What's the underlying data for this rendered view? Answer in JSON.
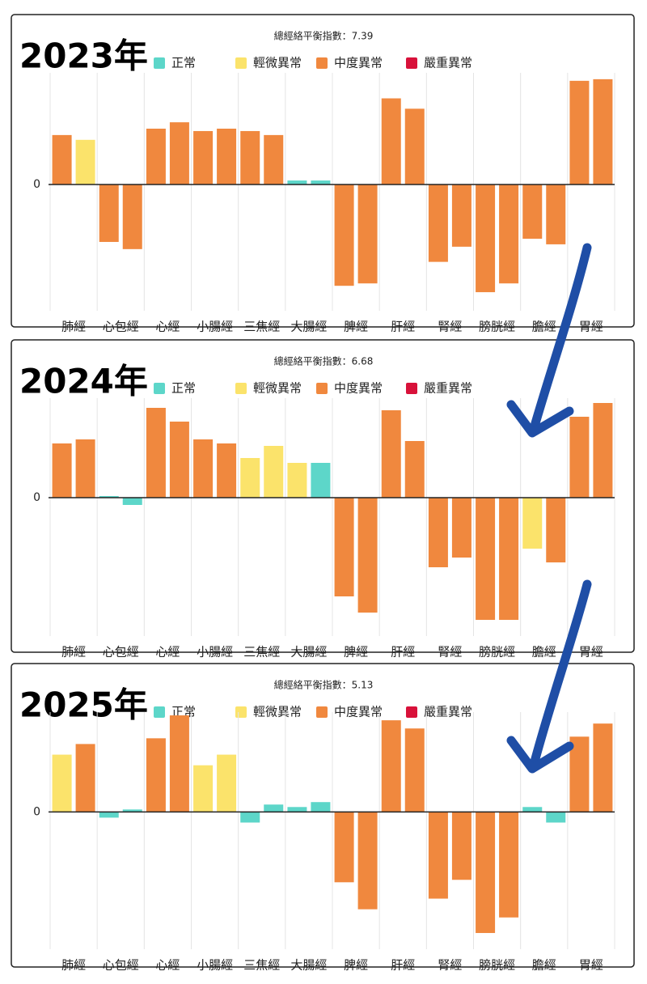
{
  "chart_data": [
    {
      "type": "bar",
      "annotation": "2023年",
      "title": "總經絡平衡指數：7.39",
      "categories": [
        "肺經",
        "心包經",
        "心經",
        "小腸經",
        "三焦經",
        "大腸經",
        "脾經",
        "肝經",
        "腎經",
        "膀胱經",
        "膽經",
        "胃經"
      ],
      "series": [
        {
          "name": "正常",
          "color": "#5dd6c9",
          "values": [
            [
              null,
              null
            ],
            [
              null,
              null
            ],
            [
              null,
              null
            ],
            [
              null,
              null
            ],
            [
              null,
              null
            ],
            [
              5,
              5
            ],
            [
              null,
              null
            ],
            [
              null,
              null
            ],
            [
              null,
              null
            ],
            [
              null,
              null
            ],
            [
              null,
              null
            ],
            [
              null,
              null
            ]
          ]
        },
        {
          "name": "輕微異常",
          "color": "#fbe36b",
          "values": [
            [
              null,
              56
            ],
            [
              null,
              null
            ],
            [
              null,
              null
            ],
            [
              null,
              null
            ],
            [
              null,
              null
            ],
            [
              null,
              null
            ],
            [
              null,
              null
            ],
            [
              null,
              null
            ],
            [
              null,
              null
            ],
            [
              null,
              null
            ],
            [
              null,
              null
            ],
            [
              null,
              null
            ]
          ]
        },
        {
          "name": "中度異常",
          "color": "#f0883e",
          "values": [
            [
              62,
              null
            ],
            [
              -72,
              -81
            ],
            [
              70,
              78
            ],
            [
              67,
              70
            ],
            [
              67,
              62
            ],
            [
              null,
              null
            ],
            [
              -127,
              -124
            ],
            [
              108,
              95
            ],
            [
              -97,
              -78
            ],
            [
              -135,
              -124
            ],
            [
              -68,
              -75
            ],
            [
              130,
              132
            ]
          ]
        },
        {
          "name": "嚴重異常",
          "color": "#d8113a",
          "values": [
            [
              null,
              null
            ],
            [
              null,
              null
            ],
            [
              null,
              null
            ],
            [
              null,
              null
            ],
            [
              null,
              null
            ],
            [
              null,
              null
            ],
            [
              null,
              null
            ],
            [
              null,
              null
            ],
            [
              null,
              null
            ],
            [
              null,
              null
            ],
            [
              null,
              null
            ],
            [
              null,
              null
            ]
          ]
        }
      ],
      "ylim": [
        -140,
        140
      ],
      "yticks": [
        0
      ],
      "grid": true
    },
    {
      "type": "bar",
      "annotation": "2024年",
      "title": "總經絡平衡指數：6.68",
      "categories": [
        "肺經",
        "心包經",
        "心經",
        "小腸經",
        "三焦經",
        "大腸經",
        "脾經",
        "肝經",
        "腎經",
        "膀胱經",
        "膽經",
        "胃經"
      ],
      "series": [
        {
          "name": "正常",
          "color": "#5dd6c9",
          "values": [
            [
              null,
              null
            ],
            [
              2,
              -9
            ],
            [
              null,
              null
            ],
            [
              null,
              null
            ],
            [
              null,
              null
            ],
            [
              null,
              43
            ],
            [
              null,
              null
            ],
            [
              null,
              null
            ],
            [
              null,
              null
            ],
            [
              null,
              null
            ],
            [
              null,
              null
            ],
            [
              null,
              null
            ]
          ]
        },
        {
          "name": "輕微異常",
          "color": "#fbe36b",
          "values": [
            [
              null,
              null
            ],
            [
              null,
              null
            ],
            [
              null,
              null
            ],
            [
              null,
              null
            ],
            [
              49,
              64
            ],
            [
              43,
              null
            ],
            [
              null,
              null
            ],
            [
              null,
              null
            ],
            [
              null,
              null
            ],
            [
              null,
              null
            ],
            [
              -63,
              null
            ],
            [
              null,
              null
            ]
          ]
        },
        {
          "name": "中度異常",
          "color": "#f0883e",
          "values": [
            [
              67,
              72
            ],
            [
              null,
              null
            ],
            [
              111,
              94
            ],
            [
              72,
              67
            ],
            [
              null,
              null
            ],
            [
              null,
              null
            ],
            [
              -122,
              -142
            ],
            [
              108,
              70
            ],
            [
              -86,
              -74
            ],
            [
              -151,
              -151
            ],
            [
              null,
              -80
            ],
            [
              100,
              117
            ]
          ]
        },
        {
          "name": "嚴重異常",
          "color": "#d8113a",
          "values": [
            [
              null,
              null
            ],
            [
              null,
              null
            ],
            [
              null,
              null
            ],
            [
              null,
              null
            ],
            [
              null,
              null
            ],
            [
              null,
              null
            ],
            [
              null,
              null
            ],
            [
              null,
              null
            ],
            [
              null,
              null
            ],
            [
              null,
              null
            ],
            [
              null,
              null
            ],
            [
              null,
              null
            ]
          ]
        }
      ],
      "ylim": [
        -153,
        123
      ],
      "yticks": [
        0
      ],
      "grid": true
    },
    {
      "type": "bar",
      "annotation": "2025年",
      "title": "總經絡平衡指數：5.13",
      "categories": [
        "肺經",
        "心包經",
        "心經",
        "小腸經",
        "三焦經",
        "大腸經",
        "脾經",
        "肝經",
        "腎經",
        "膀胱經",
        "膽經",
        "胃經"
      ],
      "series": [
        {
          "name": "正常",
          "color": "#5dd6c9",
          "values": [
            [
              null,
              null
            ],
            [
              -7,
              3
            ],
            [
              null,
              null
            ],
            [
              null,
              null
            ],
            [
              -13,
              9
            ],
            [
              6,
              12
            ],
            [
              null,
              null
            ],
            [
              null,
              null
            ],
            [
              null,
              null
            ],
            [
              null,
              null
            ],
            [
              6,
              -13
            ],
            [
              null,
              null
            ]
          ]
        },
        {
          "name": "輕微異常",
          "color": "#fbe36b",
          "values": [
            [
              70,
              null
            ],
            [
              null,
              null
            ],
            [
              null,
              null
            ],
            [
              57,
              70
            ],
            [
              null,
              null
            ],
            [
              null,
              null
            ],
            [
              null,
              null
            ],
            [
              null,
              null
            ],
            [
              null,
              null
            ],
            [
              null,
              null
            ],
            [
              null,
              null
            ],
            [
              null,
              null
            ]
          ]
        },
        {
          "name": "中度異常",
          "color": "#f0883e",
          "values": [
            [
              null,
              83
            ],
            [
              null,
              null
            ],
            [
              90,
              118
            ],
            [
              null,
              null
            ],
            [
              null,
              null
            ],
            [
              null,
              null
            ],
            [
              -86,
              -119
            ],
            [
              112,
              102
            ],
            [
              -106,
              -83
            ],
            [
              -148,
              -129
            ],
            [
              null,
              null
            ],
            [
              92,
              108
            ]
          ]
        },
        {
          "name": "嚴重異常",
          "color": "#d8113a",
          "values": [
            [
              null,
              null
            ],
            [
              null,
              null
            ],
            [
              null,
              null
            ],
            [
              null,
              null
            ],
            [
              null,
              null
            ],
            [
              null,
              null
            ],
            [
              null,
              null
            ],
            [
              null,
              null
            ],
            [
              null,
              null
            ],
            [
              null,
              null
            ],
            [
              null,
              null
            ],
            [
              null,
              null
            ]
          ]
        }
      ],
      "ylim": [
        -150,
        122
      ],
      "yticks": [
        0
      ],
      "grid": true
    }
  ]
}
